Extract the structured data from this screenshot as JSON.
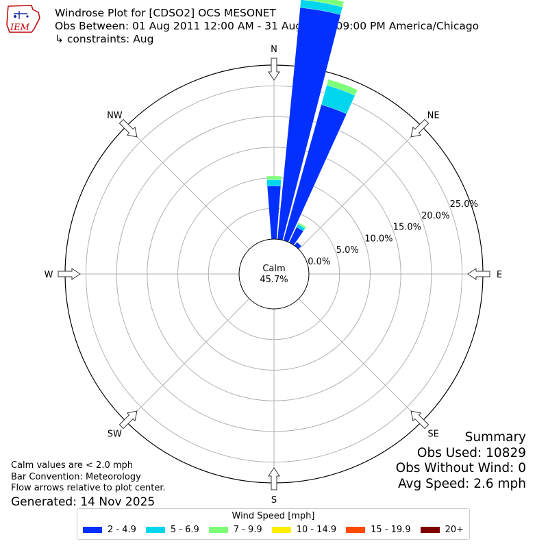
{
  "header": {
    "title": "Windrose Plot for [CDSO2] OCS MESONET",
    "obs_between": "Obs Between: 01 Aug 2011 12:00 AM - 31 Aug 2025 09:00 PM America/Chicago",
    "constraints": "↳ constraints: Aug",
    "logo_text": "IEM"
  },
  "chart_data": {
    "type": "windrose",
    "directions": [
      "N",
      "NE",
      "E",
      "SE",
      "S",
      "SW",
      "W",
      "NW"
    ],
    "radial_ticks": [
      0,
      5,
      10,
      15,
      20,
      25
    ],
    "radial_tick_labels": [
      "0.0%",
      "5.0%",
      "10.0%",
      "15.0%",
      "20.0%",
      "25.0%"
    ],
    "calm": {
      "label": "Calm",
      "value": "45.7%"
    },
    "speed_bins": [
      {
        "label": "2 - 4.9",
        "color": "#0430ff"
      },
      {
        "label": "5 - 6.9",
        "color": "#00d6ee"
      },
      {
        "label": "7 - 9.9",
        "color": "#7dff7a"
      },
      {
        "label": "10 - 14.9",
        "color": "#ffee00"
      },
      {
        "label": "15 - 19.9",
        "color": "#ff4a00"
      },
      {
        "label": "20+",
        "color": "#800000"
      }
    ],
    "bars": [
      {
        "direction_deg": 0,
        "values": [
          8.7,
          1.0,
          0.6,
          0,
          0,
          0
        ]
      },
      {
        "direction_deg": 10,
        "values": [
          38.0,
          1.3,
          0.9,
          0,
          0,
          0
        ]
      },
      {
        "direction_deg": 20,
        "values": [
          23.0,
          3.3,
          1.0,
          0,
          0,
          0
        ]
      },
      {
        "direction_deg": 30,
        "values": [
          2.8,
          0.5,
          0.3,
          0,
          0,
          0
        ]
      },
      {
        "direction_deg": 40,
        "values": [
          0.7,
          0,
          0,
          0,
          0,
          0
        ]
      }
    ],
    "legend_title": "Wind Speed [mph]"
  },
  "notes": {
    "calm_note": "Calm values are < 2.0 mph",
    "bar_convention": "Bar Convention: Meteorology",
    "flow_note": "Flow arrows relative to plot center.",
    "generated": "Generated: 14 Nov 2025"
  },
  "summary": {
    "title": "Summary",
    "obs_used": "Obs Used: 10829",
    "obs_without_wind": "Obs Without Wind: 0",
    "avg_speed": "Avg Speed: 2.6 mph"
  }
}
